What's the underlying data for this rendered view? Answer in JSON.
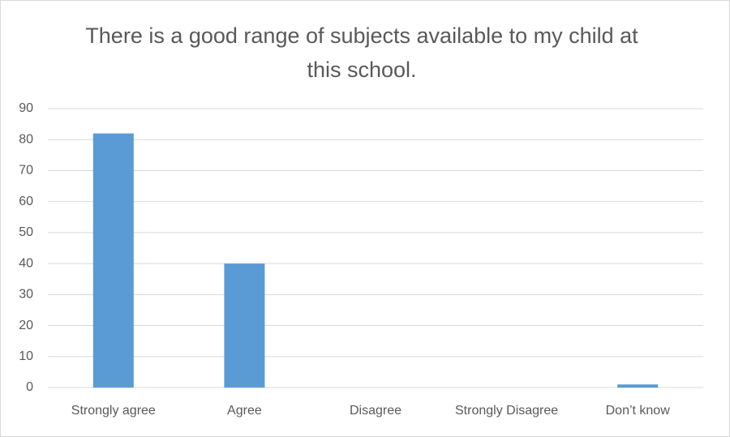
{
  "chart_data": {
    "type": "bar",
    "title": "There is a good range of subjects available to my child at this school.",
    "categories": [
      "Strongly agree",
      "Agree",
      "Disagree",
      "Strongly Disagree",
      "Don’t know"
    ],
    "values": [
      82,
      40,
      0,
      0,
      1
    ],
    "color": "#5b9bd5",
    "ylim": [
      0,
      90
    ],
    "yticks": [
      0,
      10,
      20,
      30,
      40,
      50,
      60,
      70,
      80,
      90
    ],
    "grid": true
  }
}
